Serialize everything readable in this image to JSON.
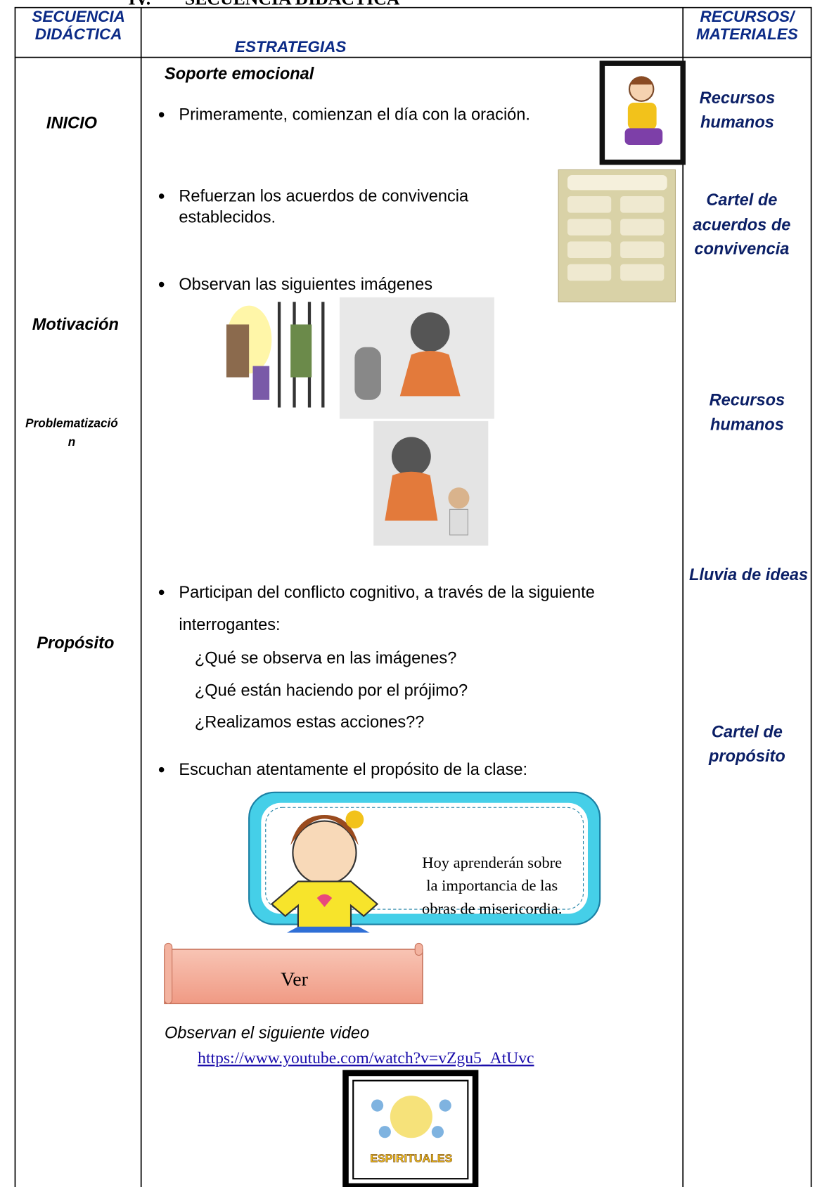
{
  "header": {
    "number": "IV.",
    "title": "SECUENCIA DIDÁCTICA"
  },
  "table": {
    "headers": {
      "sequence": [
        "SECUENCIA",
        "DIDÁCTICA"
      ],
      "strategies": "ESTRATEGIAS",
      "resources": [
        "RECURSOS/",
        "MATERIALES"
      ]
    },
    "stages": {
      "inicio": "INICIO",
      "motivacion": "Motivación",
      "problematizacion": [
        "Problematizació",
        "n"
      ],
      "proposito": "Propósito"
    },
    "strategies": {
      "heading": "Soporte emocional",
      "items": [
        [
          "Primeramente, comienzan el día con la oración."
        ],
        [
          "Refuerzan los acuerdos de convivencia",
          "establecidos."
        ],
        [
          "Observan las siguientes imágenes"
        ],
        [
          "Participan del conflicto cognitivo, a través de la siguiente",
          "interrogantes:"
        ],
        [
          "Escuchan atentamente el propósito de la clase:"
        ]
      ],
      "questions": [
        "¿Qué se observa en las imágenes?",
        "¿Qué están haciendo por el prójimo?",
        "¿Realizamos estas acciones??"
      ],
      "purpose_card": [
        "Hoy aprenderán sobre",
        "la importancia de las",
        "obras de misericordia."
      ],
      "button": "Ver",
      "video_text": "Observan el siguiente video",
      "video_link": "https://www.youtube.com/watch?v=vZgu5_AtUvc",
      "video_image_text": "ESPIRITUALES"
    },
    "resources": [
      [
        "Recursos",
        "humanos"
      ],
      [
        "Cartel de",
        "acuerdos de",
        "convivencia"
      ],
      [
        "Recursos",
        "humanos"
      ],
      [
        "Lluvia de ideas"
      ],
      [
        "Cartel de",
        "propósito"
      ]
    ]
  }
}
